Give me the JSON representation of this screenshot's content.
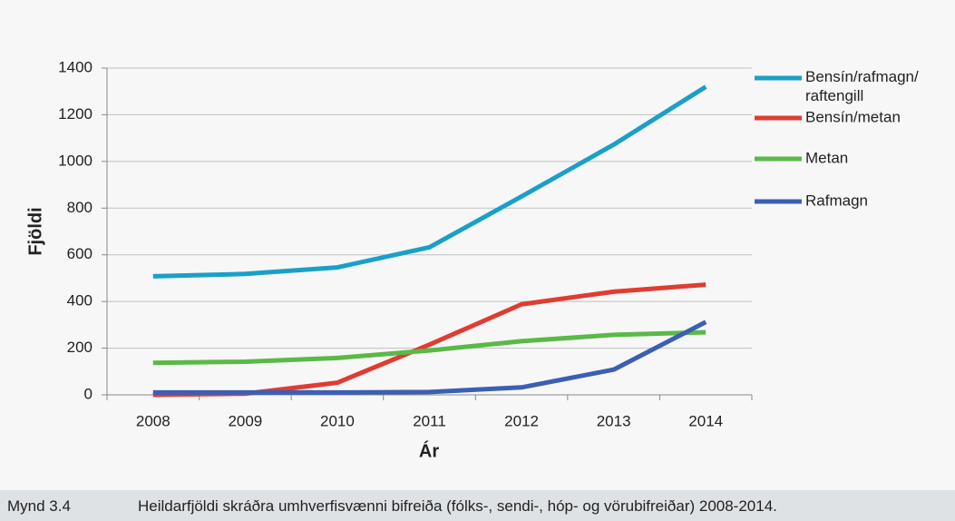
{
  "chart_data": {
    "type": "line",
    "x_label": "Ár",
    "y_label": "Fjöldi",
    "categories": [
      "2008",
      "2009",
      "2010",
      "2011",
      "2012",
      "2013",
      "2014"
    ],
    "series": [
      {
        "name": "Bensín/rafmagn/raftengill",
        "color": "#1aa0c8",
        "values": [
          508,
          518,
          546,
          632,
          850,
          1072,
          1320
        ]
      },
      {
        "name": "Bensín/metan",
        "color": "#e03c31",
        "values": [
          0,
          5,
          52,
          215,
          388,
          442,
          472
        ]
      },
      {
        "name": "Metan",
        "color": "#5ab947",
        "values": [
          137,
          142,
          158,
          190,
          230,
          257,
          268
        ]
      },
      {
        "name": "Rafmagn",
        "color": "#3b5fb4",
        "values": [
          10,
          10,
          10,
          12,
          32,
          108,
          312
        ]
      }
    ],
    "ylim": [
      0,
      1400
    ],
    "yticks": [
      0,
      200,
      400,
      600,
      800,
      1000,
      1200,
      1400
    ],
    "grid": true,
    "legend": "right"
  },
  "caption": {
    "label": "Mynd 3.4",
    "text": "Heildarfjöldi skráðra umhverfisvænni bifreiða (fólks-, sendi-, hóp- og vörubifreiðar) 2008-2014."
  }
}
